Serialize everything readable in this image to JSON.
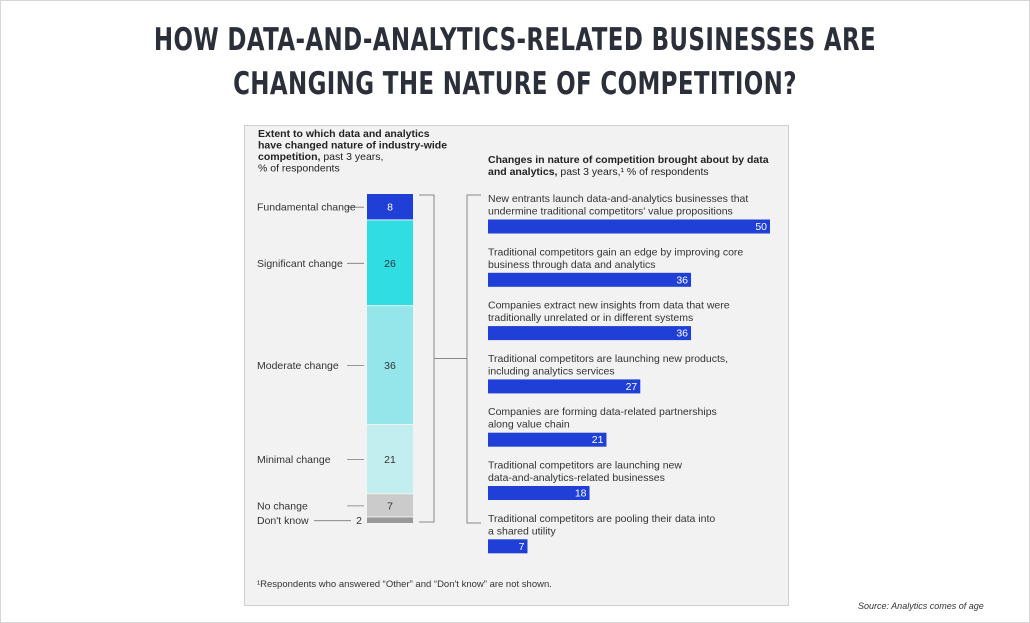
{
  "title": {
    "line1": "HOW DATA-AND-ANALYTICS-RELATED BUSINESSES ARE",
    "line2": "CHANGING THE NATURE OF COMPETITION?"
  },
  "source": "Source: Analytics comes of age",
  "colors": {
    "stack": [
      "#1f3fd6",
      "#2fdde2",
      "#94e6ea",
      "#c3eef0",
      "#cbcbcb",
      "#999999"
    ],
    "bar": "#1f3fd6",
    "panel": "#f2f2f2"
  },
  "chart_data": [
    {
      "type": "bar",
      "stacked": true,
      "title_bold": "Extent to which data and analytics have changed nature of industry-wide competition,",
      "title_rest": "past 3 years, % of respondents",
      "title_lines": [
        {
          "bold": "Extent to which data and analytics",
          "rest": ""
        },
        {
          "bold": "have changed nature of industry-wide",
          "rest": ""
        },
        {
          "bold": "competition,",
          "rest": " past 3 years,"
        },
        {
          "bold": "",
          "rest": "% of respondents"
        }
      ],
      "categories": [
        "Fundamental change",
        "Significant change",
        "Moderate change",
        "Minimal change",
        "No change",
        "Don't know"
      ],
      "values": [
        8,
        26,
        36,
        21,
        7,
        2
      ]
    },
    {
      "type": "bar",
      "orientation": "horizontal",
      "title_lines": [
        {
          "bold": "Changes in nature of competition brought about by data",
          "rest": ""
        },
        {
          "bold": "and analytics,",
          "rest": " past 3 years,¹ % of respondents"
        }
      ],
      "categories": [
        [
          "New entrants launch data-and-analytics businesses that",
          "undermine traditional competitors' value propositions"
        ],
        [
          "Traditional competitors gain an edge by improving core",
          "business through data and analytics"
        ],
        [
          "Companies extract new insights from data that were",
          "traditionally unrelated or in different systems"
        ],
        [
          "Traditional competitors are launching new products,",
          "including analytics services"
        ],
        [
          "Companies are forming data-related partnerships",
          "along value chain"
        ],
        [
          "Traditional competitors are launching new",
          "data-and-analytics-related businesses"
        ],
        [
          "Traditional competitors are pooling their data into",
          "a shared utility"
        ]
      ],
      "values": [
        50,
        36,
        36,
        27,
        21,
        18,
        7
      ]
    }
  ],
  "footnote": "¹Respondents who answered “Other” and “Don't know” are not shown."
}
